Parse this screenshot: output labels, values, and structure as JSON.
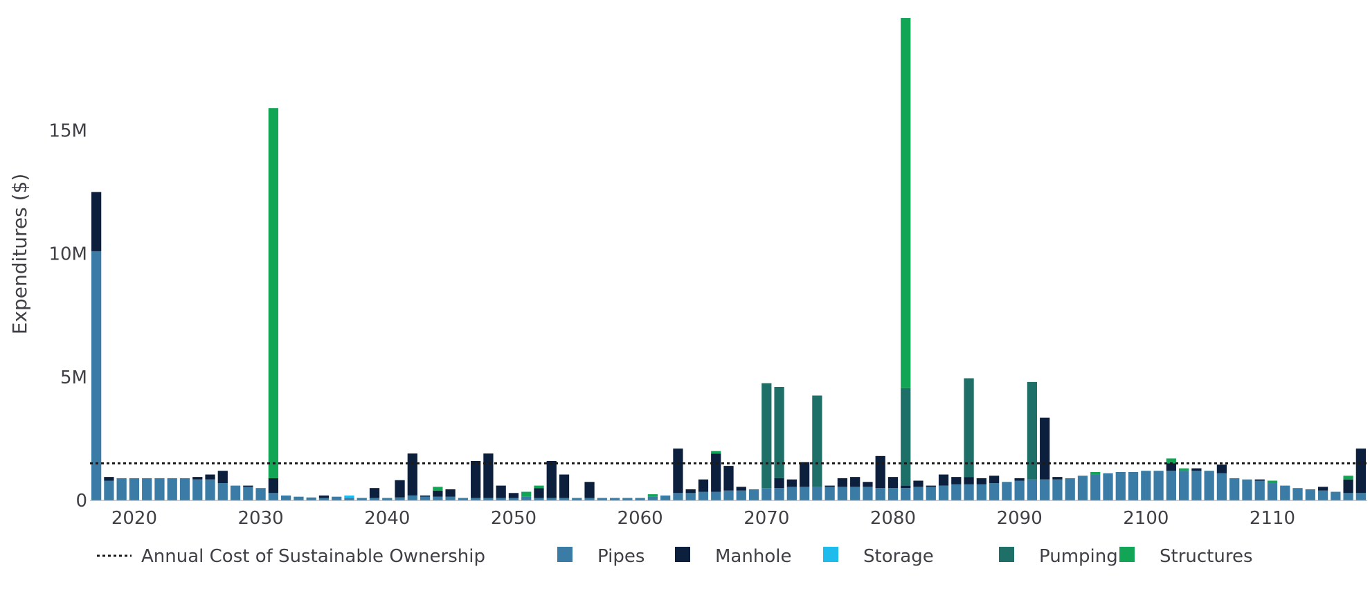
{
  "chart_data": {
    "type": "bar",
    "stacked": true,
    "title": "",
    "xlabel": "",
    "ylabel": "Expenditures ($)",
    "ylim": [
      0,
      20000000
    ],
    "xlim": [
      2016.5,
      2117.5
    ],
    "x_ticks": [
      2020,
      2030,
      2040,
      2050,
      2060,
      2070,
      2080,
      2090,
      2100,
      2110
    ],
    "y_ticks": [
      {
        "value": 0,
        "label": "0"
      },
      {
        "value": 5000000,
        "label": "5M"
      },
      {
        "value": 10000000,
        "label": "10M"
      },
      {
        "value": 15000000,
        "label": "15M"
      }
    ],
    "grid": false,
    "legend_position": "bottom",
    "x": [
      2017,
      2018,
      2019,
      2020,
      2021,
      2022,
      2023,
      2024,
      2025,
      2026,
      2027,
      2028,
      2029,
      2030,
      2031,
      2032,
      2033,
      2034,
      2035,
      2036,
      2037,
      2038,
      2039,
      2040,
      2041,
      2042,
      2043,
      2044,
      2045,
      2046,
      2047,
      2048,
      2049,
      2050,
      2051,
      2052,
      2053,
      2054,
      2055,
      2056,
      2057,
      2058,
      2059,
      2060,
      2061,
      2062,
      2063,
      2064,
      2065,
      2066,
      2067,
      2068,
      2069,
      2070,
      2071,
      2072,
      2073,
      2074,
      2075,
      2076,
      2077,
      2078,
      2079,
      2080,
      2081,
      2082,
      2083,
      2084,
      2085,
      2086,
      2087,
      2088,
      2089,
      2090,
      2091,
      2092,
      2093,
      2094,
      2095,
      2096,
      2097,
      2098,
      2099,
      2100,
      2101,
      2102,
      2103,
      2104,
      2105,
      2106,
      2107,
      2108,
      2109,
      2110,
      2111,
      2112,
      2113,
      2114,
      2115,
      2116,
      2117
    ],
    "series": [
      {
        "name": "Pipes",
        "color": "#3a7ca5",
        "values": [
          10100000,
          800000,
          900000,
          900000,
          900000,
          900000,
          900000,
          900000,
          850000,
          850000,
          700000,
          600000,
          550000,
          500000,
          300000,
          200000,
          150000,
          120000,
          100000,
          150000,
          100000,
          100000,
          100000,
          100000,
          120000,
          200000,
          150000,
          150000,
          150000,
          100000,
          100000,
          100000,
          100000,
          100000,
          150000,
          100000,
          100000,
          100000,
          100000,
          100000,
          100000,
          100000,
          100000,
          100000,
          150000,
          200000,
          300000,
          300000,
          350000,
          350000,
          400000,
          400000,
          450000,
          500000,
          500000,
          550000,
          550000,
          550000,
          550000,
          550000,
          550000,
          550000,
          500000,
          500000,
          500000,
          550000,
          550000,
          600000,
          650000,
          650000,
          650000,
          700000,
          750000,
          800000,
          850000,
          850000,
          850000,
          900000,
          1000000,
          1050000,
          1100000,
          1150000,
          1150000,
          1200000,
          1200000,
          1200000,
          1200000,
          1200000,
          1200000,
          1100000,
          900000,
          850000,
          800000,
          700000,
          600000,
          500000,
          450000,
          400000,
          350000,
          300000,
          300000
        ]
      },
      {
        "name": "Manhole",
        "color": "#0c1f3d",
        "values": [
          2400000,
          150000,
          0,
          0,
          0,
          0,
          0,
          0,
          100000,
          200000,
          500000,
          0,
          50000,
          0,
          600000,
          0,
          0,
          0,
          100000,
          0,
          0,
          0,
          400000,
          0,
          700000,
          1700000,
          50000,
          250000,
          300000,
          0,
          1500000,
          1800000,
          500000,
          200000,
          0,
          400000,
          1500000,
          950000,
          0,
          650000,
          0,
          0,
          0,
          0,
          0,
          0,
          1800000,
          150000,
          500000,
          1550000,
          1000000,
          150000,
          0,
          0,
          400000,
          300000,
          1000000,
          0,
          50000,
          350000,
          400000,
          200000,
          1300000,
          450000,
          100000,
          250000,
          50000,
          450000,
          300000,
          300000,
          250000,
          300000,
          0,
          100000,
          0,
          2500000,
          100000,
          0,
          0,
          0,
          0,
          0,
          0,
          0,
          0,
          300000,
          0,
          100000,
          0,
          350000,
          0,
          0,
          50000,
          0,
          0,
          0,
          0,
          150000,
          0,
          550000,
          1800000
        ]
      },
      {
        "name": "Storage",
        "color": "#1ebcec",
        "values": [
          0,
          0,
          0,
          0,
          0,
          0,
          0,
          0,
          0,
          0,
          0,
          0,
          0,
          0,
          0,
          0,
          0,
          0,
          0,
          0,
          100000,
          0,
          0,
          0,
          0,
          0,
          0,
          0,
          0,
          0,
          0,
          0,
          0,
          0,
          0,
          0,
          0,
          0,
          0,
          0,
          0,
          0,
          0,
          0,
          0,
          0,
          0,
          0,
          0,
          0,
          0,
          0,
          0,
          0,
          0,
          0,
          0,
          0,
          0,
          0,
          0,
          0,
          0,
          0,
          0,
          0,
          0,
          0,
          0,
          0,
          0,
          0,
          0,
          0,
          0,
          0,
          0,
          0,
          0,
          0,
          0,
          0,
          0,
          0,
          0,
          0,
          0,
          0,
          0,
          0,
          0,
          0,
          0,
          0,
          0,
          0,
          0,
          0,
          0,
          0,
          0
        ]
      },
      {
        "name": "Pumping",
        "color": "#1e6f68",
        "values": [
          0,
          0,
          0,
          0,
          0,
          0,
          0,
          0,
          0,
          0,
          0,
          0,
          0,
          0,
          0,
          0,
          0,
          0,
          0,
          0,
          0,
          0,
          0,
          0,
          0,
          0,
          0,
          0,
          0,
          0,
          0,
          0,
          0,
          0,
          0,
          0,
          0,
          0,
          0,
          0,
          0,
          0,
          0,
          0,
          0,
          0,
          0,
          0,
          0,
          0,
          0,
          0,
          0,
          4250000,
          3700000,
          0,
          0,
          3700000,
          0,
          0,
          0,
          0,
          0,
          0,
          3950000,
          0,
          0,
          0,
          0,
          4000000,
          0,
          0,
          0,
          0,
          3950000,
          0,
          0,
          0,
          0,
          0,
          0,
          0,
          0,
          0,
          0,
          0,
          0,
          0,
          0,
          0,
          0,
          0,
          0,
          0,
          0,
          0,
          0,
          0,
          0,
          0,
          0
        ]
      },
      {
        "name": "Structures",
        "color": "#12a556",
        "values": [
          0,
          0,
          0,
          0,
          0,
          0,
          0,
          0,
          0,
          0,
          0,
          0,
          0,
          0,
          15000000,
          0,
          0,
          0,
          0,
          0,
          0,
          0,
          0,
          0,
          0,
          0,
          0,
          150000,
          0,
          0,
          0,
          0,
          0,
          0,
          200000,
          100000,
          0,
          0,
          0,
          0,
          0,
          0,
          0,
          0,
          100000,
          0,
          0,
          0,
          0,
          100000,
          0,
          0,
          0,
          0,
          0,
          0,
          0,
          0,
          0,
          0,
          0,
          0,
          0,
          0,
          15000000,
          0,
          0,
          0,
          0,
          0,
          0,
          0,
          0,
          0,
          0,
          0,
          0,
          0,
          0,
          100000,
          0,
          0,
          0,
          0,
          0,
          200000,
          100000,
          0,
          0,
          0,
          0,
          0,
          0,
          100000,
          0,
          0,
          0,
          0,
          0,
          150000,
          0
        ]
      }
    ],
    "reference_line": {
      "name": "Annual Cost of Sustainable Ownership",
      "value": 1500000,
      "style": "dotted",
      "color": "#1a1a1a"
    }
  }
}
